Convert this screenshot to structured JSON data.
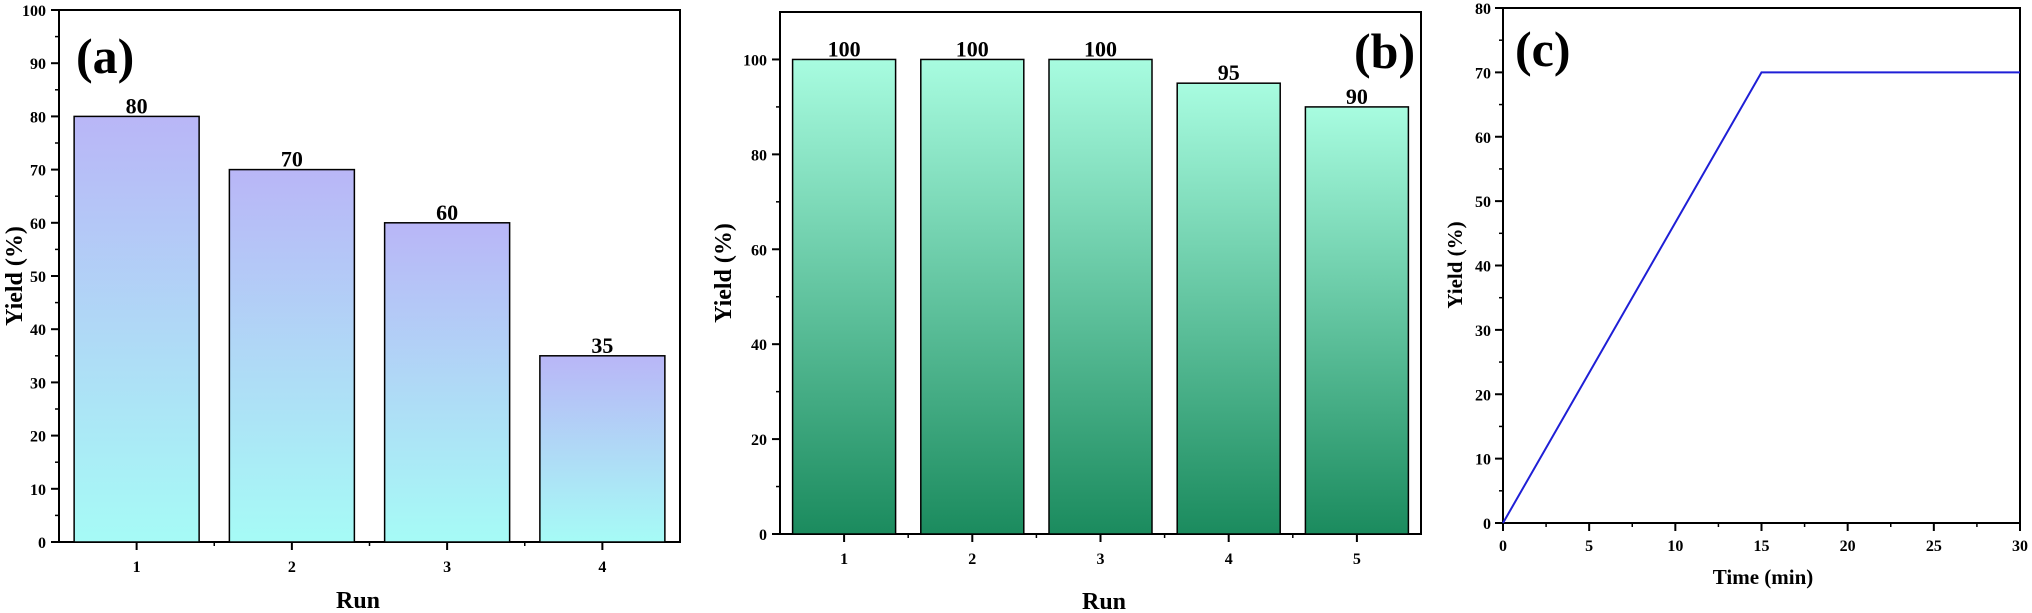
{
  "chart_data": [
    {
      "panel": "(a)",
      "type": "bar",
      "categories": [
        "1",
        "2",
        "3",
        "4"
      ],
      "values": [
        80,
        70,
        60,
        35
      ],
      "labels": [
        "80",
        "70",
        "60",
        "35"
      ],
      "xlabel": "Run",
      "ylabel": "Yield (%)",
      "ylim": [
        0,
        100
      ],
      "yticks": [
        0,
        10,
        20,
        30,
        40,
        50,
        60,
        70,
        80,
        90,
        100
      ],
      "grid": false,
      "colors": {
        "top": "#b9b6f7",
        "bottom": "#a6fbf6",
        "edge": "#000000"
      }
    },
    {
      "panel": "(b)",
      "type": "bar",
      "categories": [
        "1",
        "2",
        "3",
        "4",
        "5"
      ],
      "values": [
        100,
        100,
        100,
        95,
        90
      ],
      "labels": [
        "100",
        "100",
        "100",
        "95",
        "90"
      ],
      "xlabel": "Run",
      "ylabel": "Yield (%)",
      "ylim": [
        0,
        110
      ],
      "yticks": [
        0,
        20,
        40,
        60,
        80,
        100
      ],
      "grid": false,
      "colors": {
        "top": "#a8fce0",
        "bottom": "#1b8b5e",
        "edge": "#000000"
      }
    },
    {
      "panel": "(c)",
      "type": "line",
      "x": [
        0,
        15,
        30
      ],
      "y": [
        0,
        70,
        70
      ],
      "xlabel": "Time (min)",
      "ylabel": "Yield (%)",
      "xlim": [
        0,
        30
      ],
      "ylim": [
        0,
        80
      ],
      "xticks": [
        0,
        5,
        10,
        15,
        20,
        25,
        30
      ],
      "yticks": [
        0,
        10,
        20,
        30,
        40,
        50,
        60,
        70,
        80
      ],
      "grid": false,
      "colors": {
        "line": "#1f1fd6"
      }
    }
  ]
}
